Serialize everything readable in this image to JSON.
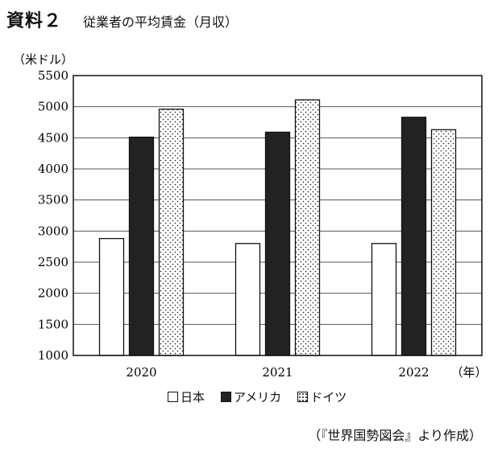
{
  "header": {
    "label": "資料２",
    "title": "従業者の平均賃金（月収）"
  },
  "source": "（『世界国勢図会』より作成）",
  "colors": {
    "日本": "#ffffff",
    "アメリカ": "#222222",
    "ドイツ": "dotted"
  },
  "chart_data": {
    "type": "bar",
    "title": "従業者の平均賃金（月収）",
    "ylabel": "（米ドル）",
    "xlabel": "（年）",
    "categories": [
      "2020",
      "2021",
      "2022"
    ],
    "ylim": [
      1000,
      5500
    ],
    "yticks": [
      1000,
      1500,
      2000,
      2500,
      3000,
      3500,
      4000,
      4500,
      5000,
      5500
    ],
    "grid": true,
    "legend_position": "bottom",
    "series": [
      {
        "name": "日本",
        "values": [
          2880,
          2800,
          2800
        ]
      },
      {
        "name": "アメリカ",
        "values": [
          4510,
          4590,
          4830
        ]
      },
      {
        "name": "ドイツ",
        "values": [
          4960,
          5110,
          4630
        ]
      }
    ]
  }
}
